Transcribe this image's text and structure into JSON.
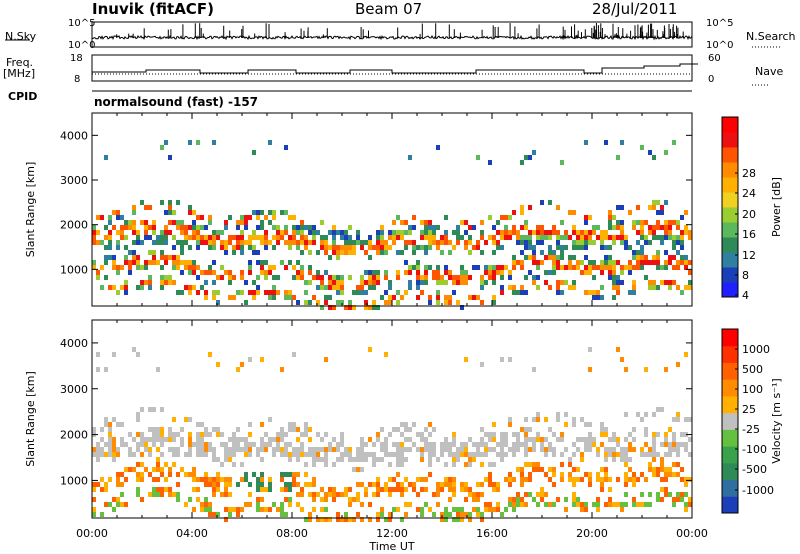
{
  "header": {
    "station": "Inuvik (fitACF)",
    "beam": "Beam 07",
    "date": "28/Jul/2011"
  },
  "panel_labels": {
    "nsky": "N.Sky",
    "nsearch": "N.Search",
    "freq_line1": "Freq.",
    "freq_line2": "[MHz]",
    "nave": "Nave",
    "cpid": "CPID",
    "cpid_value": "normalsound (fast) -157"
  },
  "chart_data": [
    {
      "type": "line",
      "name": "noise",
      "y_left_ticks": [
        "10^5",
        "10^0"
      ],
      "y_right_ticks": [
        "10^5",
        "10^0"
      ],
      "series": [
        {
          "name": "N.Sky",
          "style": "solid"
        },
        {
          "name": "N.Search",
          "style": "dotted"
        }
      ]
    },
    {
      "type": "line",
      "name": "frequency-nave",
      "y_left_ticks": [
        "18",
        "8"
      ],
      "y_right_ticks": [
        "60",
        "0"
      ],
      "ylim_left": [
        8,
        18
      ],
      "ylim_right": [
        0,
        60
      ],
      "series": [
        {
          "name": "Freq.",
          "style": "solid"
        },
        {
          "name": "Nave",
          "style": "dotted"
        }
      ]
    },
    {
      "type": "heatmap",
      "name": "power",
      "ylabel": "Slant Range [km]",
      "ylim": [
        180,
        4500
      ],
      "yticks": [
        1000,
        2000,
        3000,
        4000
      ],
      "colorbar_label": "Power [dB]",
      "colorbar_ticks": [
        "28",
        "24",
        "20",
        "16",
        "12",
        "8",
        "4"
      ],
      "colors": [
        "#2020ff",
        "#1a3fb8",
        "#2e7fa0",
        "#2e8b57",
        "#5cb85c",
        "#9acd32",
        "#f0d020",
        "#ffb000",
        "#ff8c00",
        "#ff5500",
        "#ee1010",
        "#ff0000"
      ]
    },
    {
      "type": "heatmap",
      "name": "velocity",
      "ylabel": "Slant Range [km]",
      "ylim": [
        180,
        4500
      ],
      "yticks": [
        1000,
        2000,
        3000,
        4000
      ],
      "xlabel": "Time UT",
      "xticks": [
        "00:00",
        "04:00",
        "08:00",
        "12:00",
        "16:00",
        "20:00",
        "00:00"
      ],
      "colorbar_label": "Velocity [m s⁻¹]",
      "colorbar_ticks": [
        "1000",
        "500",
        "100",
        "25",
        "-25",
        "-100",
        "-500",
        "-1000"
      ],
      "colors": [
        "#1a3fb8",
        "#2e6ea0",
        "#2e8b57",
        "#3aa24a",
        "#66c040",
        "#c0c0c0",
        "#ffb000",
        "#ff8c00",
        "#ff6000",
        "#ff3000",
        "#ff0000"
      ]
    }
  ]
}
